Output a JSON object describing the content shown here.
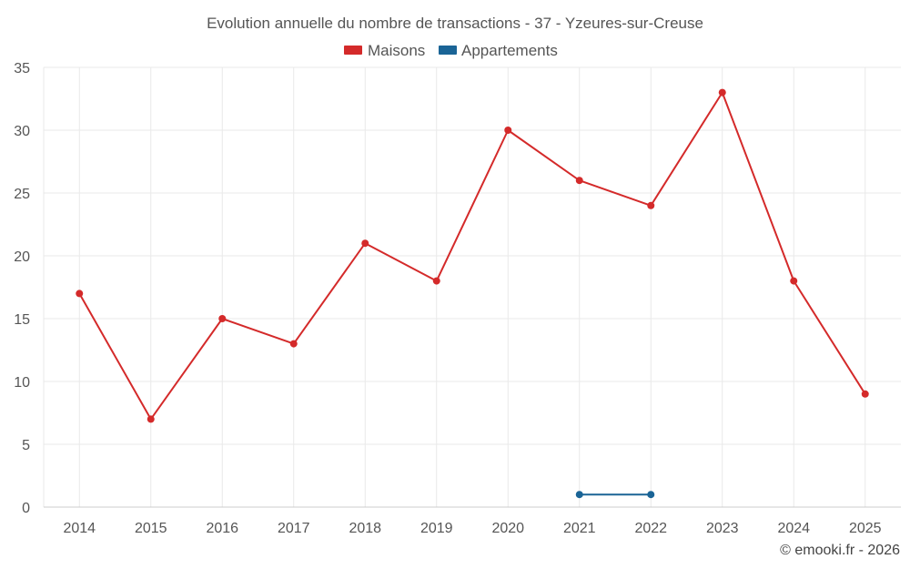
{
  "chart_data": {
    "type": "line",
    "title": "Evolution annuelle du nombre de transactions - 37 - Yzeures-sur-Creuse",
    "categories": [
      "2014",
      "2015",
      "2016",
      "2017",
      "2018",
      "2019",
      "2020",
      "2021",
      "2022",
      "2023",
      "2024",
      "2025"
    ],
    "series": [
      {
        "name": "Maisons",
        "color": "#d42a2a",
        "values": [
          17,
          7,
          15,
          13,
          21,
          18,
          30,
          26,
          24,
          33,
          18,
          9
        ]
      },
      {
        "name": "Appartements",
        "color": "#1a6496",
        "values": [
          null,
          null,
          null,
          null,
          null,
          null,
          null,
          1,
          1,
          null,
          null,
          null
        ]
      }
    ],
    "ylim": [
      0,
      35
    ],
    "yticks": [
      0,
      5,
      10,
      15,
      20,
      25,
      30,
      35
    ],
    "grid": true,
    "legend": "top-center",
    "credit": "© emooki.fr - 2026"
  }
}
